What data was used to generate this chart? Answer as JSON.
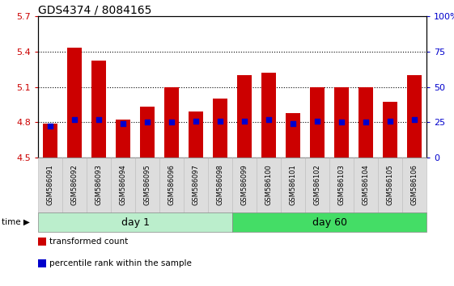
{
  "title": "GDS4374 / 8084165",
  "samples": [
    "GSM586091",
    "GSM586092",
    "GSM586093",
    "GSM586094",
    "GSM586095",
    "GSM586096",
    "GSM586097",
    "GSM586098",
    "GSM586099",
    "GSM586100",
    "GSM586101",
    "GSM586102",
    "GSM586103",
    "GSM586104",
    "GSM586105",
    "GSM586106"
  ],
  "bar_tops": [
    4.79,
    5.43,
    5.32,
    4.82,
    4.93,
    5.1,
    4.89,
    5.0,
    5.2,
    5.22,
    4.88,
    5.1,
    5.1,
    5.1,
    4.97,
    5.2
  ],
  "blue_dots": [
    4.77,
    4.82,
    4.82,
    4.79,
    4.8,
    4.8,
    4.81,
    4.81,
    4.81,
    4.82,
    4.79,
    4.81,
    4.8,
    4.8,
    4.81,
    4.82
  ],
  "bar_color": "#cc0000",
  "dot_color": "#0000cc",
  "ymin": 4.5,
  "ymax": 5.7,
  "yticks": [
    4.5,
    4.8,
    5.1,
    5.4,
    5.7
  ],
  "ytick_labels": [
    "4.5",
    "4.8",
    "5.1",
    "5.4",
    "5.7"
  ],
  "y2min": 0,
  "y2max": 100,
  "y2ticks": [
    0,
    25,
    50,
    75,
    100
  ],
  "y2tick_labels": [
    "0",
    "25",
    "50",
    "75",
    "100%"
  ],
  "bar_width": 0.6,
  "day1_color": "#bbeecc",
  "day60_color": "#44dd66",
  "cell_color": "#dddddd",
  "cell_edge_color": "#bbbbbb",
  "legend_items": [
    {
      "color": "#cc0000",
      "label": "transformed count"
    },
    {
      "color": "#0000cc",
      "label": "percentile rank within the sample"
    }
  ],
  "bg_color": "#ffffff",
  "plot_bg": "#ffffff",
  "title_fontsize": 10,
  "tick_fontsize": 8,
  "sample_fontsize": 6,
  "group_fontsize": 9
}
